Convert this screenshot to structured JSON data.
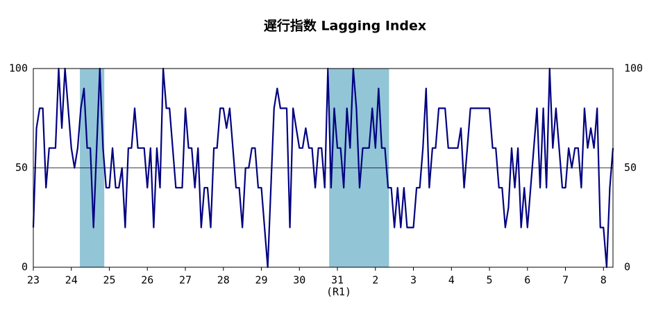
{
  "chart_data": {
    "type": "line",
    "title": "遅行指数 Lagging Index",
    "x": [
      0,
      1,
      2,
      3,
      4,
      5,
      6,
      7,
      8,
      9,
      10,
      11,
      12,
      13,
      14,
      15,
      16,
      17,
      18,
      19,
      20,
      21,
      22,
      23,
      24,
      25,
      26,
      27,
      28,
      29,
      30,
      31,
      32,
      33,
      34,
      35,
      36,
      37,
      38,
      39,
      40,
      41,
      42,
      43,
      44,
      45,
      46,
      47,
      48,
      49,
      50,
      51,
      52,
      53,
      54,
      55,
      56,
      57,
      58,
      59,
      60,
      61,
      62,
      63,
      64,
      65,
      66,
      67,
      68,
      69,
      70,
      71,
      72,
      73,
      74,
      75,
      76,
      77,
      78,
      79,
      80,
      81,
      82,
      83,
      84,
      85,
      86,
      87,
      88,
      89,
      90,
      91,
      92,
      93,
      94,
      95,
      96,
      97,
      98,
      99,
      100,
      101,
      102,
      103,
      104,
      105,
      106,
      107,
      108,
      109,
      110,
      111,
      112,
      113,
      114,
      115,
      116,
      117,
      118,
      119,
      120,
      121,
      122,
      123,
      124,
      125,
      126,
      127,
      128,
      129,
      130,
      131,
      132,
      133,
      134,
      135,
      136,
      137,
      138,
      139,
      140,
      141,
      142,
      143,
      144,
      145,
      146,
      147,
      148,
      149,
      150,
      151,
      152,
      153,
      154,
      155,
      156,
      157,
      158,
      159,
      160,
      161,
      162,
      163,
      164,
      165,
      166,
      167,
      168,
      169,
      170,
      171,
      172,
      173,
      174,
      175,
      176,
      177,
      178,
      179,
      180,
      181,
      182,
      183
    ],
    "series": [
      {
        "color": "#000080",
        "values": [
          20,
          70,
          80,
          80,
          40,
          60,
          60,
          60,
          100,
          70,
          100,
          80,
          60,
          50,
          60,
          80,
          90,
          60,
          60,
          20,
          60,
          100,
          60,
          40,
          40,
          60,
          40,
          40,
          50,
          20,
          60,
          60,
          80,
          60,
          60,
          60,
          40,
          60,
          20,
          60,
          40,
          100,
          80,
          80,
          60,
          40,
          40,
          40,
          80,
          60,
          60,
          40,
          60,
          20,
          40,
          40,
          20,
          60,
          60,
          80,
          80,
          70,
          80,
          60,
          40,
          40,
          20,
          50,
          50,
          60,
          60,
          40,
          40,
          20,
          0,
          40,
          80,
          90,
          80,
          80,
          80,
          20,
          80,
          70,
          60,
          60,
          70,
          60,
          60,
          40,
          60,
          60,
          40,
          100,
          40,
          80,
          60,
          60,
          40,
          80,
          60,
          100,
          80,
          40,
          60,
          60,
          60,
          80,
          60,
          90,
          60,
          60,
          40,
          40,
          20,
          40,
          20,
          40,
          20,
          20,
          20,
          40,
          40,
          60,
          90,
          40,
          60,
          60,
          80,
          80,
          80,
          60,
          60,
          60,
          60,
          70,
          40,
          60,
          80,
          80,
          80,
          80,
          80,
          80,
          80,
          60,
          60,
          40,
          40,
          20,
          30,
          60,
          40,
          60,
          20,
          40,
          20,
          40,
          60,
          80,
          40,
          80,
          40,
          100,
          60,
          80,
          60,
          40,
          40,
          60,
          50,
          60,
          60,
          40,
          80,
          60,
          70,
          60,
          80,
          20,
          20,
          0,
          40,
          60
        ]
      }
    ],
    "shaded_periods": [
      [
        14.7,
        22.4
      ],
      [
        93.4,
        112.3
      ]
    ],
    "shade_color": "#92c5d6",
    "xlim": [
      0,
      183
    ],
    "xticks": [
      {
        "value": 0,
        "label": "23"
      },
      {
        "value": 12,
        "label": "24"
      },
      {
        "value": 24,
        "label": "25"
      },
      {
        "value": 36,
        "label": "26"
      },
      {
        "value": 48,
        "label": "27"
      },
      {
        "value": 60,
        "label": "28"
      },
      {
        "value": 72,
        "label": "29"
      },
      {
        "value": 84,
        "label": "30"
      },
      {
        "value": 96,
        "label": "31"
      },
      {
        "value": 108,
        "label": "2"
      },
      {
        "value": 120,
        "label": "3"
      },
      {
        "value": 132,
        "label": "4"
      },
      {
        "value": 144,
        "label": "5"
      },
      {
        "value": 156,
        "label": "6"
      },
      {
        "value": 168,
        "label": "7"
      },
      {
        "value": 180,
        "label": "8"
      }
    ],
    "annotation": "(R1)",
    "ylim": [
      0,
      100
    ],
    "yticks": [
      0,
      50,
      100
    ],
    "grid_values": [
      50
    ]
  }
}
